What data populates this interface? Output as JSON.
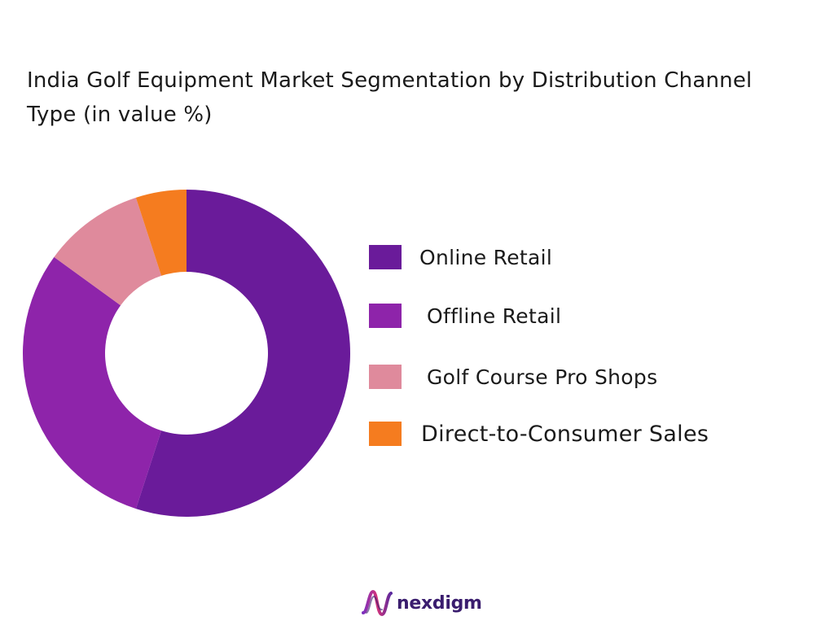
{
  "chart_data": {
    "type": "pie",
    "variant": "donut",
    "title": "India Golf Equipment Market Segmentation by Distribution Channel Type  (in value %)",
    "categories": [
      "Online Retail",
      "Offline Retail",
      "Golf Course Pro Shops",
      "Direct-to-Consumer Sales"
    ],
    "values": [
      55,
      30,
      10,
      5
    ],
    "unit": "%",
    "colors": [
      "#6a1b9a",
      "#8e24aa",
      "#df8a9c",
      "#f57c1f"
    ],
    "legend": "right",
    "start_angle": "12 o'clock",
    "direction": "clockwise"
  },
  "brand": {
    "logo_text": "nexdigm",
    "logo_icon": "nexdigm-wave-icon",
    "color": "#3a1d6e"
  }
}
